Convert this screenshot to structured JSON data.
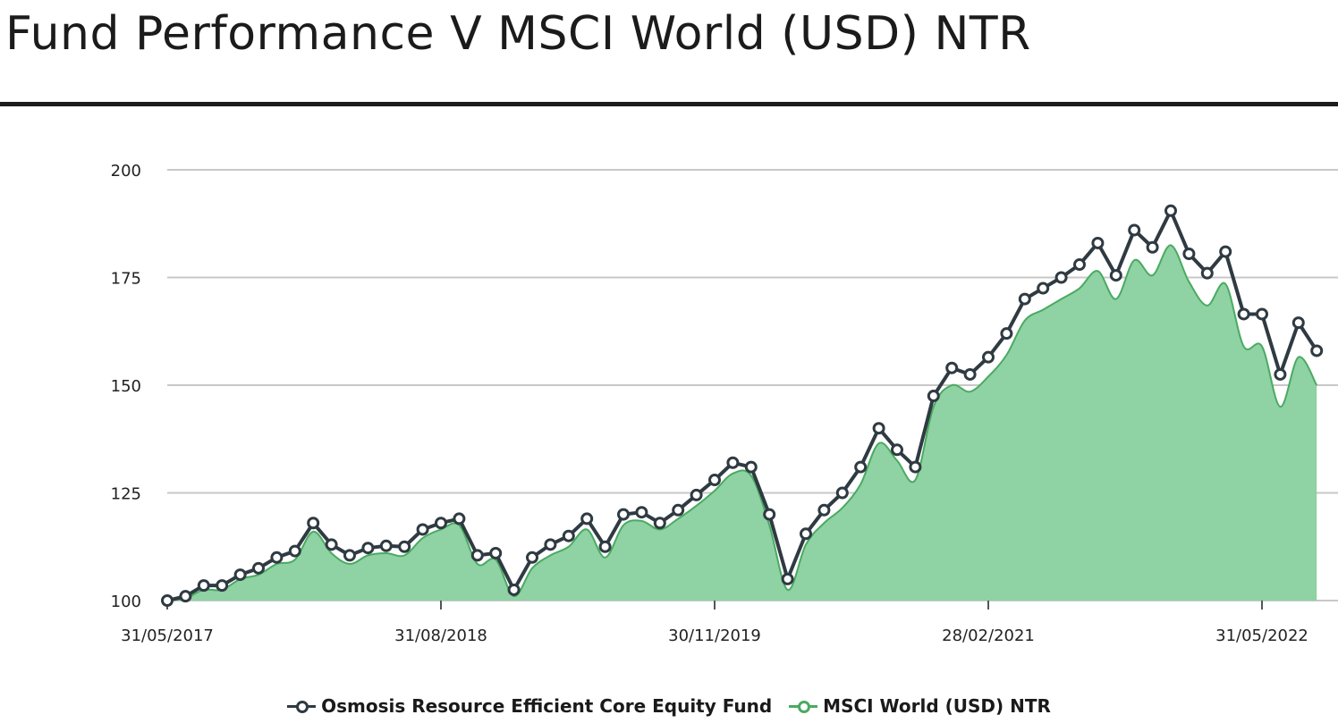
{
  "title": "Fund Performance V MSCI World (USD) NTR",
  "colors": {
    "fund": "#2f3a42",
    "benchmark_line": "#4aaa62",
    "benchmark_fill": "#8fd2a3",
    "grid": "#c8c8c8"
  },
  "chart_data": {
    "type": "line",
    "title": "Fund Performance V MSCI World (USD) NTR",
    "xlabel": "",
    "ylabel": "",
    "ylim": [
      100,
      200
    ],
    "yticks": [
      "100",
      "125",
      "150",
      "175",
      "200"
    ],
    "xticks": [
      "31/05/2017",
      "31/08/2018",
      "30/11/2019",
      "28/02/2021",
      "31/05/2022"
    ],
    "grid": true,
    "legend_position": "bottom-center",
    "x": [
      "2017-05",
      "2017-06",
      "2017-07",
      "2017-08",
      "2017-09",
      "2017-10",
      "2017-11",
      "2017-12",
      "2018-01",
      "2018-02",
      "2018-03",
      "2018-04",
      "2018-05",
      "2018-06",
      "2018-07",
      "2018-08",
      "2018-09",
      "2018-10",
      "2018-11",
      "2018-12",
      "2019-01",
      "2019-02",
      "2019-03",
      "2019-04",
      "2019-05",
      "2019-06",
      "2019-07",
      "2019-08",
      "2019-09",
      "2019-10",
      "2019-11",
      "2019-12",
      "2020-01",
      "2020-02",
      "2020-03",
      "2020-04",
      "2020-05",
      "2020-06",
      "2020-07",
      "2020-08",
      "2020-09",
      "2020-10",
      "2020-11",
      "2020-12",
      "2021-01",
      "2021-02",
      "2021-03",
      "2021-04",
      "2021-05",
      "2021-06",
      "2021-07",
      "2021-08",
      "2021-09",
      "2021-10",
      "2021-11",
      "2021-12",
      "2022-01",
      "2022-02",
      "2022-03",
      "2022-04",
      "2022-05",
      "2022-06",
      "2022-07",
      "2022-08"
    ],
    "series": [
      {
        "name": "Osmosis Resource Efficient Core Equity Fund",
        "values": [
          100,
          101,
          103.5,
          103.5,
          106,
          107.5,
          110,
          111.5,
          118,
          113,
          110.5,
          112.2,
          112.7,
          112.5,
          116.5,
          118,
          119,
          110.5,
          111,
          102.5,
          110,
          113,
          115,
          119,
          112.5,
          120,
          120.5,
          118,
          121,
          124.5,
          128,
          132,
          131,
          120,
          105,
          115.5,
          121,
          125,
          131,
          140,
          135,
          131,
          147.5,
          154,
          152.5,
          156.5,
          162,
          170,
          172.5,
          175,
          178,
          183,
          175.5,
          186,
          182,
          190.5,
          180.5,
          176,
          181,
          166.5,
          166.5,
          152.5,
          164.5,
          158
        ]
      },
      {
        "name": "MSCI World (USD) NTR",
        "values": [
          100,
          100.5,
          102.5,
          102.5,
          105,
          106,
          108.5,
          109.5,
          116,
          111,
          108.5,
          110.5,
          111,
          110.5,
          114.5,
          116.5,
          117.5,
          108.5,
          109.5,
          101,
          107.5,
          110.5,
          112.5,
          116.5,
          110,
          117.5,
          118.5,
          116.5,
          119,
          122,
          125.5,
          129.5,
          129,
          117.5,
          102.5,
          113,
          118,
          121.5,
          127,
          136.5,
          132.5,
          128,
          145,
          150,
          148.5,
          152,
          157,
          165,
          167.5,
          170,
          172.5,
          176.5,
          170,
          179,
          175.5,
          182.5,
          174,
          168.5,
          173.5,
          159,
          159,
          145,
          156.5,
          150
        ]
      }
    ]
  }
}
